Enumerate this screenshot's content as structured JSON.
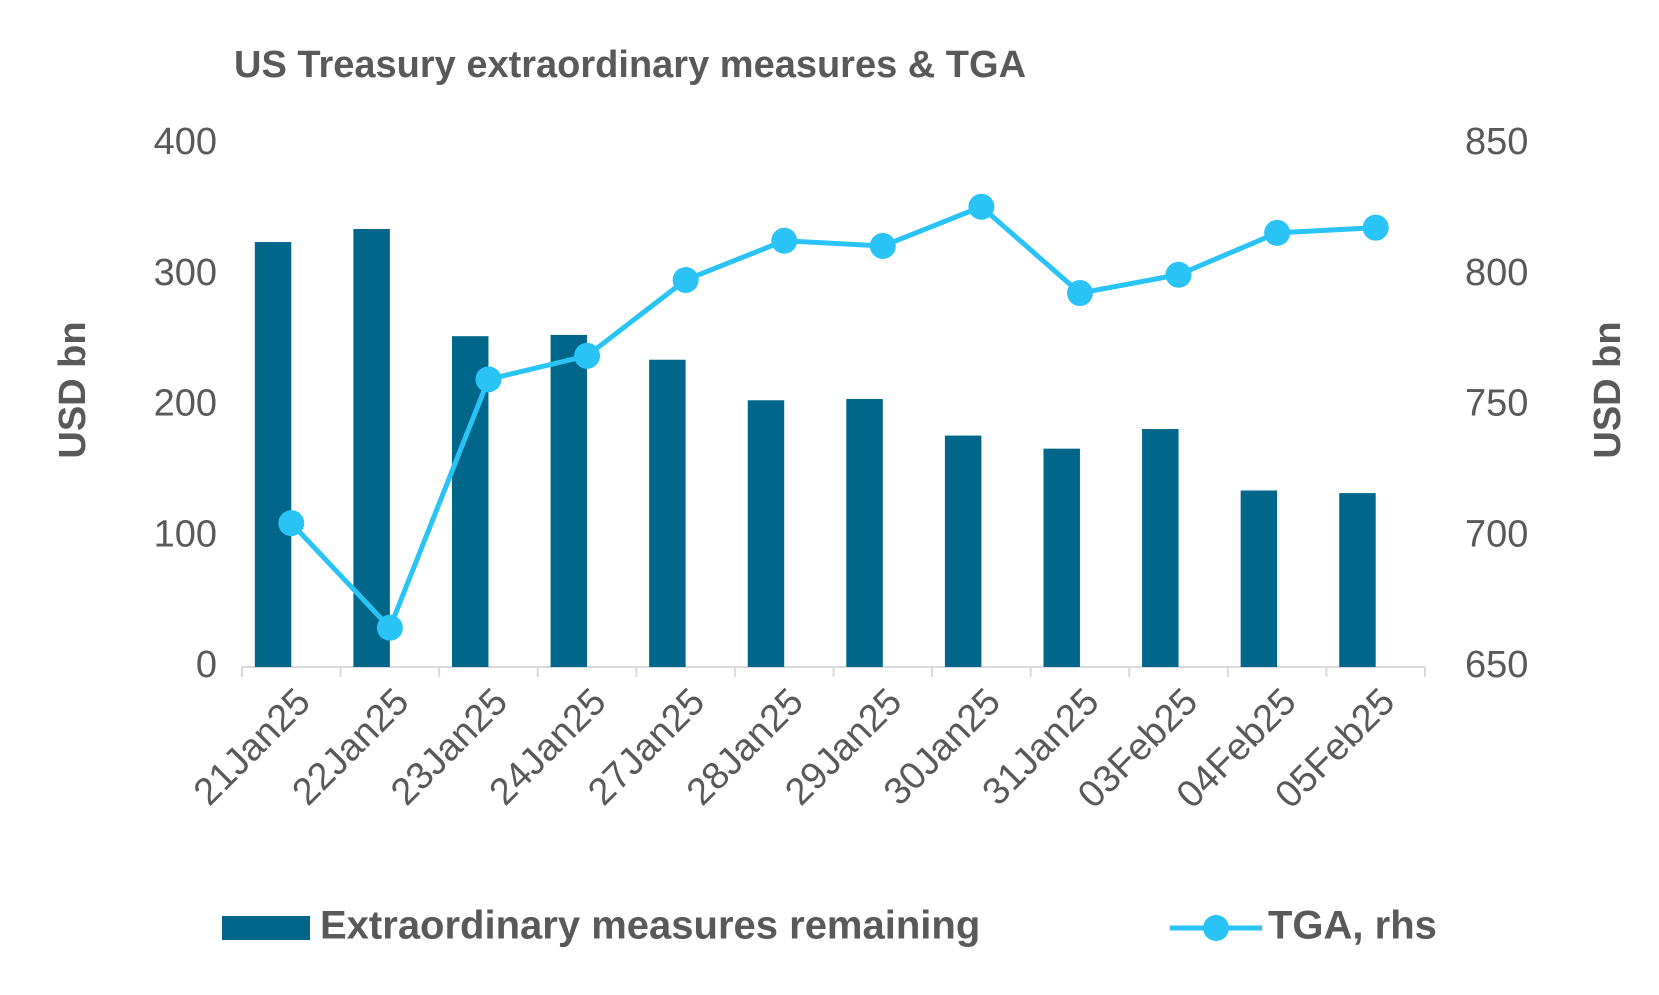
{
  "chart_data": {
    "type": "bar-line",
    "title": "US Treasury extraordinary measures & TGA",
    "y_label": "USD bn",
    "y2_label": "USD bn",
    "categories": [
      "21Jan25",
      "22Jan25",
      "23Jan25",
      "24Jan25",
      "27Jan25",
      "28Jan25",
      "29Jan25",
      "30Jan25",
      "31Jan25",
      "03Feb25",
      "04Feb25",
      "05Feb25"
    ],
    "series": [
      {
        "name": "Extraordinary measures remaining",
        "type": "bar",
        "color": "#00678a",
        "values": [
          325,
          335,
          253,
          254,
          235,
          204,
          205,
          177,
          167,
          182,
          135,
          133
        ]
      },
      {
        "name": "TGA, rhs",
        "type": "line",
        "axis": "y2",
        "color": "#29c4f5",
        "values": [
          705,
          665,
          760,
          769,
          798,
          813,
          811,
          826,
          793,
          800,
          816,
          818
        ]
      }
    ],
    "ylim": [
      0,
      400
    ],
    "yticks": [
      0,
      100,
      200,
      300,
      400
    ],
    "y2lim": [
      650,
      850
    ],
    "y2ticks": [
      650,
      700,
      750,
      800,
      850
    ],
    "legend": "bottom"
  }
}
